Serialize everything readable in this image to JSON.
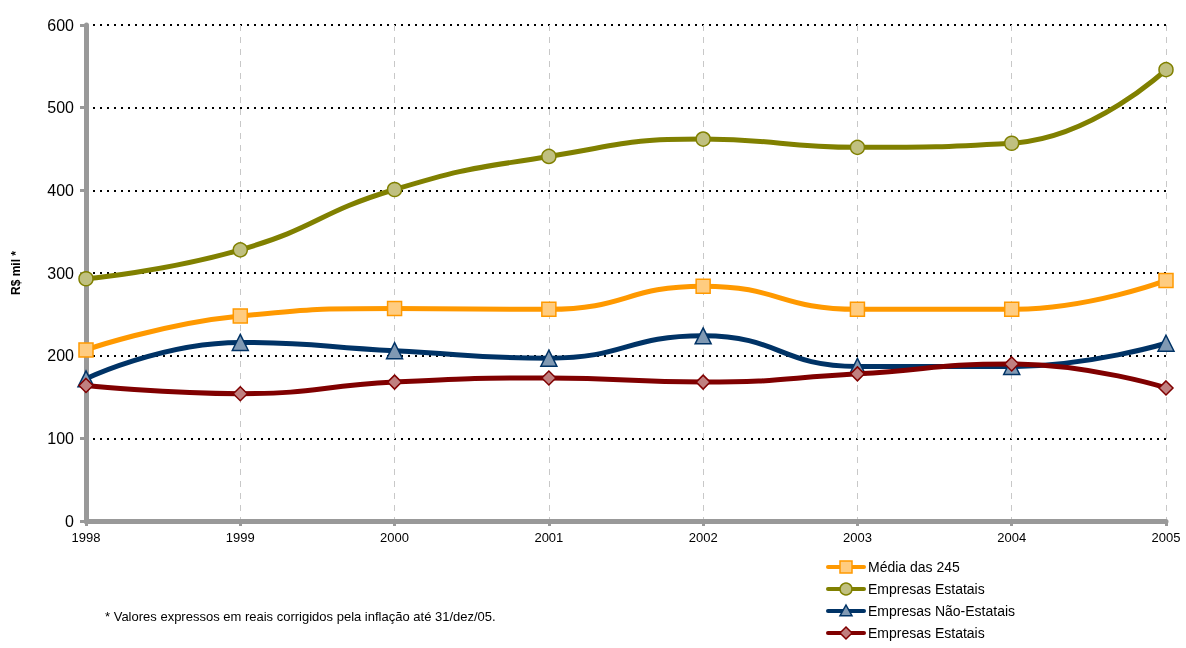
{
  "chart_data": {
    "type": "line",
    "ylabel": "R$ mil *",
    "categories": [
      "1998",
      "1999",
      "2000",
      "2001",
      "2002",
      "2003",
      "2004",
      "2005"
    ],
    "series": [
      {
        "name": "Média das 245",
        "color": "#ff9900",
        "marker": "square",
        "values": [
          207,
          248,
          257,
          256,
          284,
          256,
          256,
          291
        ]
      },
      {
        "name": "Empresas Estatais",
        "color": "#808000",
        "marker": "circle",
        "values": [
          293,
          328,
          401,
          441,
          462,
          452,
          457,
          546
        ]
      },
      {
        "name": "Empresas Não-Estatais",
        "color": "#003366",
        "marker": "triangle",
        "values": [
          172,
          216,
          206,
          197,
          224,
          187,
          187,
          215
        ]
      },
      {
        "name": "Empresas Estatais",
        "color": "#800000",
        "marker": "diamond",
        "values": [
          164,
          154,
          168,
          173,
          168,
          178,
          190,
          161
        ]
      }
    ],
    "ylim": [
      0,
      600
    ],
    "yticks": [
      0,
      100,
      200,
      300,
      400,
      500,
      600
    ],
    "grid": true,
    "legend": "bottom right",
    "line_style": "solid",
    "annotations": [
      "* Valores expressos em reais corrigidos pela inflação até 31/dez/05."
    ]
  }
}
